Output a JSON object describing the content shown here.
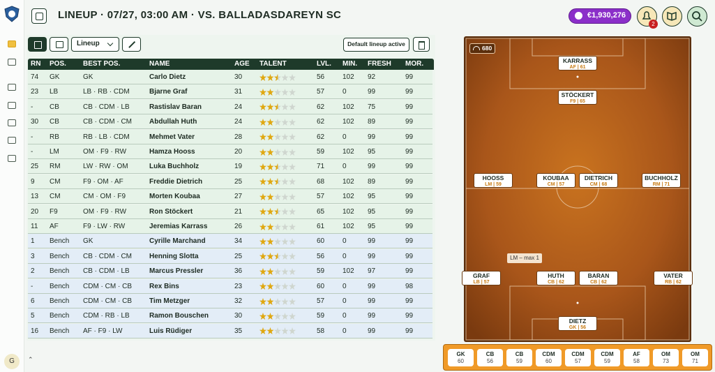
{
  "header": {
    "title": "LINEUP · 07/27, 03:00 AM · VS. BALLADASDAREYN SC",
    "balance": "€1,930,276",
    "notifications": 2
  },
  "toolbar": {
    "lineup_select": "Lineup",
    "default_lineup": "Default lineup active"
  },
  "sidebar": {
    "avatar": "G"
  },
  "table": {
    "columns": [
      "RN",
      "POS.",
      "BEST POS.",
      "NAME",
      "AGE",
      "TALENT",
      "LVL.",
      "MIN.",
      "FRESH",
      "MOR."
    ],
    "rows": [
      [
        74,
        "GK",
        "GK",
        "Carlo Dietz",
        30,
        2.5,
        56,
        102,
        92,
        99
      ],
      [
        23,
        "LB",
        "LB · RB · CDM",
        "Bjarne Graf",
        31,
        2,
        57,
        0,
        99,
        99
      ],
      [
        "-",
        "CB",
        "CB · CDM · LB",
        "Rastislav Baran",
        24,
        2.5,
        62,
        102,
        75,
        99
      ],
      [
        30,
        "CB",
        "CB · CDM · CM",
        "Abdullah Huth",
        24,
        2,
        62,
        102,
        89,
        99
      ],
      [
        "-",
        "RB",
        "RB · LB · CDM",
        "Mehmet Vater",
        28,
        2,
        62,
        0,
        99,
        99
      ],
      [
        "-",
        "LM",
        "OM · F9 · RW",
        "Hamza Hooss",
        20,
        2,
        59,
        102,
        95,
        99
      ],
      [
        25,
        "RM",
        "LW · RW · OM",
        "Luka Buchholz",
        19,
        2.5,
        71,
        0,
        99,
        99
      ],
      [
        9,
        "CM",
        "F9 · OM · AF",
        "Freddie Dietrich",
        25,
        2.5,
        68,
        102,
        89,
        99
      ],
      [
        13,
        "CM",
        "CM · OM · F9",
        "Morten Koubaa",
        27,
        2,
        57,
        102,
        95,
        99
      ],
      [
        20,
        "F9",
        "OM · F9 · RW",
        "Ron Stöckert",
        21,
        2.5,
        65,
        102,
        95,
        99
      ],
      [
        11,
        "AF",
        "F9 · LW · RW",
        "Jeremias Karrass",
        26,
        2,
        61,
        102,
        95,
        99
      ],
      [
        1,
        "Bench",
        "GK",
        "Cyrille Marchand",
        34,
        2,
        60,
        0,
        99,
        99
      ],
      [
        3,
        "Bench",
        "CB · CDM · CM",
        "Henning Slotta",
        25,
        2.5,
        56,
        0,
        99,
        99
      ],
      [
        2,
        "Bench",
        "CB · CDM · LB",
        "Marcus Pressler",
        36,
        2,
        59,
        102,
        97,
        99
      ],
      [
        "-",
        "Bench",
        "CDM · CM · CB",
        "Rex Bins",
        23,
        2,
        60,
        0,
        99,
        98
      ],
      [
        6,
        "Bench",
        "CDM · CM · CB",
        "Tim Metzger",
        32,
        2,
        57,
        0,
        99,
        99
      ],
      [
        5,
        "Bench",
        "CDM · RB · LB",
        "Ramon Bouschen",
        30,
        2,
        59,
        0,
        99,
        99
      ],
      [
        16,
        "Bench",
        "AF · F9 · LW",
        "Luis Rüdiger",
        35,
        2,
        58,
        0,
        99,
        99
      ]
    ]
  },
  "pitch": {
    "rating": 680,
    "hint": "LM – max 1",
    "players": [
      {
        "name": "KARRASS",
        "label": "AF | 61"
      },
      {
        "name": "STÖCKERT",
        "label": "F9 | 65"
      },
      {
        "name": "HOOSS",
        "label": "LM | 59"
      },
      {
        "name": "KOUBAA",
        "label": "CM | 57"
      },
      {
        "name": "DIETRICH",
        "label": "CM | 68"
      },
      {
        "name": "BUCHHOLZ",
        "label": "RM | 71"
      },
      {
        "name": "GRAF",
        "label": "LB | 57"
      },
      {
        "name": "HUTH",
        "label": "CB | 62"
      },
      {
        "name": "BARAN",
        "label": "CB | 62"
      },
      {
        "name": "VATER",
        "label": "RB | 62"
      },
      {
        "name": "DIETZ",
        "label": "GK | 56"
      }
    ]
  },
  "position_summary": [
    {
      "pos": "GK",
      "rating": 60
    },
    {
      "pos": "CB",
      "rating": 56
    },
    {
      "pos": "CB",
      "rating": 59
    },
    {
      "pos": "CDM",
      "rating": 60
    },
    {
      "pos": "CDM",
      "rating": 57
    },
    {
      "pos": "CDM",
      "rating": 59
    },
    {
      "pos": "AF",
      "rating": 58
    },
    {
      "pos": "OM",
      "rating": 73
    },
    {
      "pos": "OM",
      "rating": 71
    }
  ]
}
